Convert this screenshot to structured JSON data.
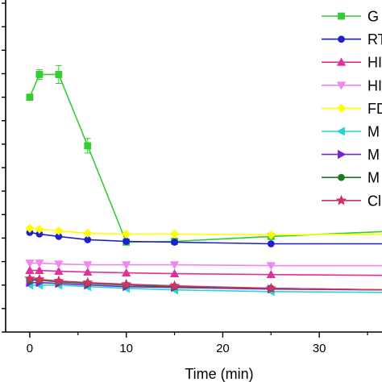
{
  "chart_data": {
    "type": "line",
    "title": "",
    "xlabel": "Time (min)",
    "ylabel": "",
    "xlim": [
      -2.5,
      36.5
    ],
    "ylim": [
      0,
      410
    ],
    "x_ticks": [
      0,
      10,
      20,
      30
    ],
    "x_tick_labels": [
      "0",
      "10",
      "20",
      "30"
    ],
    "grid": false,
    "legend_position": "top-right",
    "series": [
      {
        "name": "G",
        "color": "#33cc33",
        "marker": "square",
        "x": [
          0,
          1,
          3,
          6,
          10,
          15,
          25,
          36.5
        ],
        "y": [
          290,
          318,
          318,
          230,
          111,
          112,
          118,
          124
        ],
        "yerr": [
          0,
          6,
          11,
          9,
          0,
          0,
          0,
          0
        ]
      },
      {
        "name": "RT",
        "color": "#1f1fd0",
        "marker": "circle",
        "x": [
          0,
          1,
          3,
          6,
          10,
          15,
          25,
          36.5
        ],
        "y": [
          123,
          121,
          118,
          114,
          112,
          111,
          109,
          109
        ],
        "yerr": [
          0,
          0,
          0,
          0,
          0,
          0,
          0,
          0
        ]
      },
      {
        "name": "HI",
        "color": "#e0309a",
        "marker": "triangle-up",
        "x": [
          0,
          1,
          3,
          6,
          10,
          15,
          25,
          36.5
        ],
        "y": [
          76,
          76,
          75,
          74,
          73,
          72,
          71,
          70
        ],
        "yerr": [
          0,
          0,
          0,
          0,
          0,
          0,
          0,
          0
        ]
      },
      {
        "name": "HI",
        "color": "#ee88ee",
        "marker": "triangle-down",
        "x": [
          0,
          1,
          3,
          6,
          10,
          15,
          25,
          36.5
        ],
        "y": [
          85,
          85,
          84,
          83,
          83,
          83,
          82,
          82
        ],
        "yerr": [
          0,
          0,
          0,
          0,
          0,
          0,
          0,
          0
        ]
      },
      {
        "name": "FD",
        "color": "#ffff00",
        "marker": "diamond",
        "x": [
          0,
          1,
          3,
          6,
          10,
          15,
          25,
          36.5
        ],
        "y": [
          128,
          127,
          125,
          122,
          121,
          121,
          120,
          121
        ],
        "yerr": [
          0,
          0,
          0,
          0,
          0,
          0,
          0,
          0
        ]
      },
      {
        "name": "M",
        "color": "#22d6d6",
        "marker": "triangle-left",
        "x": [
          0,
          1,
          3,
          6,
          10,
          15,
          25,
          36.5
        ],
        "y": [
          58,
          58,
          58,
          56,
          54,
          52,
          50,
          49
        ],
        "yerr": [
          0,
          0,
          0,
          0,
          0,
          0,
          0,
          0
        ]
      },
      {
        "name": "M",
        "color": "#7a1fd6",
        "marker": "triangle-right",
        "x": [
          0,
          1,
          3,
          6,
          10,
          15,
          25,
          36.5
        ],
        "y": [
          61,
          61,
          60,
          58,
          56,
          55,
          53,
          52
        ],
        "yerr": [
          0,
          0,
          0,
          0,
          0,
          0,
          0,
          0
        ]
      },
      {
        "name": "M",
        "color": "#1f7a1f",
        "marker": "circle",
        "x": [
          0,
          1,
          3,
          6,
          10,
          15,
          25,
          36.5
        ],
        "y": [
          64,
          64,
          62,
          60,
          58,
          56,
          54,
          52
        ],
        "yerr": [
          0,
          0,
          0,
          0,
          0,
          0,
          0,
          0
        ]
      },
      {
        "name": "Cl",
        "color": "#cc3366",
        "marker": "star",
        "x": [
          0,
          1,
          3,
          6,
          10,
          15,
          25,
          36.5
        ],
        "y": [
          66,
          65,
          63,
          61,
          59,
          57,
          54,
          52
        ],
        "yerr": [
          0,
          0,
          0,
          0,
          0,
          0,
          0,
          0
        ]
      }
    ]
  }
}
